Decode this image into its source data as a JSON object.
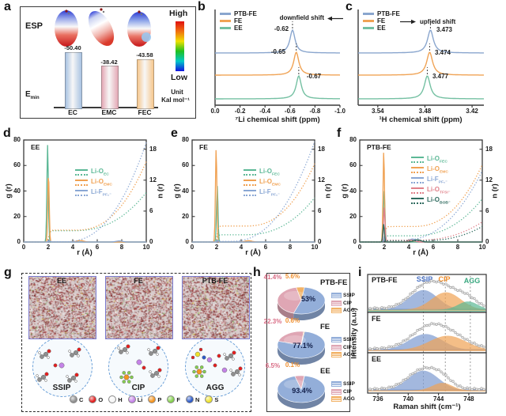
{
  "figure": {
    "panel_letters": {
      "a": "a",
      "b": "b",
      "c": "c",
      "d": "d",
      "e": "e",
      "f": "f",
      "g": "g",
      "h": "h",
      "i": "i"
    }
  },
  "colors": {
    "series_blue": "#8aa6ce",
    "series_orange": "#f0a355",
    "series_green": "#74c0a2",
    "tfsi_red": "#e0808a",
    "bob_teal": "#2f6b5f",
    "pie_blue": "#93aed9",
    "pie_pink": "#dfa6b4",
    "pie_orange": "#f2b266",
    "axis": "#3a3a3a"
  },
  "chart_data": [
    {
      "panel": "a",
      "type": "bar",
      "title": "ESP",
      "ylabel_main": "E",
      "ylabel_sub": "min",
      "categories": [
        "EC",
        "EMC",
        "FEC"
      ],
      "values": [
        -50.4,
        -38.42,
        -43.58
      ],
      "value_labels": [
        "-50.40",
        "-38.42",
        "-43.58"
      ],
      "bar_colors": [
        "#a9c3e2",
        "#e4aab6",
        "#f6c78e"
      ],
      "colorbar_high": "High",
      "colorbar_low": "Low",
      "unit_line1": "Unit",
      "unit_line2": "Kal mol⁻¹"
    },
    {
      "panel": "b",
      "type": "line",
      "legend": [
        "PTB-FE",
        "FE",
        "EE"
      ],
      "series_colors": [
        "#8aa6ce",
        "#f0a355",
        "#74c0a2"
      ],
      "annotation": "downfield shift",
      "arrow": "left",
      "peaks": [
        -0.62,
        -0.65,
        -0.67
      ],
      "peak_labels": [
        "-0.62",
        "-0.65",
        "-0.67"
      ],
      "xlabel": "⁷Li chemical shift (ppm)",
      "xtick_labels": [
        "0.0",
        "-0.2",
        "-0.4",
        "-0.6",
        "-0.8",
        "-1.0"
      ],
      "xtick_values": [
        0,
        -0.2,
        -0.4,
        -0.6,
        -0.8,
        -1.0
      ],
      "xlim": [
        0,
        -1
      ]
    },
    {
      "panel": "c",
      "type": "line",
      "legend": [
        "PTB-FE",
        "FE",
        "EE"
      ],
      "series_colors": [
        "#8aa6ce",
        "#f0a355",
        "#74c0a2"
      ],
      "annotation": "upfield shift",
      "arrow": "right",
      "peaks": [
        3.473,
        3.474,
        3.477
      ],
      "peak_labels": [
        "3.473",
        "3.474",
        "3.477"
      ],
      "xlabel": "¹H chemical shift (ppm)",
      "xtick_labels": [
        "3.54",
        "3.48",
        "3.42"
      ],
      "xtick_values": [
        3.54,
        3.48,
        3.42
      ],
      "xlim": [
        3.565,
        3.405
      ]
    },
    {
      "panel": "d",
      "type": "line",
      "title": "EE",
      "xlabel": "r (Å)",
      "ylabel_left": "g (r)",
      "ylabel_right": "n (r)",
      "xticks": [
        0,
        2,
        4,
        6,
        8,
        10
      ],
      "yticks_left": [
        0,
        20,
        40,
        60,
        80
      ],
      "yticks_right": [
        0,
        6,
        12,
        18
      ],
      "ylim_left": [
        0,
        80
      ],
      "ylim_right": [
        0,
        19.8
      ],
      "series": [
        {
          "label_main": "Li-O",
          "label_sub": "EC",
          "color": "#5cb896",
          "g_peak": [
            1.95,
            76
          ],
          "g_bump": null,
          "n_curve": [
            2.2,
            9.6,
            4.0
          ]
        },
        {
          "label_main": "Li-O",
          "label_sub": "EMC",
          "color": "#f0a152",
          "g_peak": [
            2.02,
            53
          ],
          "g_bump": [
            4.6,
            1.2
          ],
          "n_curve": [
            2.3,
            15.6,
            4.2
          ]
        },
        {
          "label_main": "Li-F",
          "label_sub": "PF₆⁻",
          "color": "#8aa7d4",
          "g_peak": [
            2.1,
            1.2
          ],
          "g_bump": [
            7.8,
            0.8
          ],
          "n_curve": [
            0.05,
            19.3,
            3.3
          ]
        }
      ]
    },
    {
      "panel": "e",
      "type": "line",
      "title": "FE",
      "xlabel": "r (Å)",
      "ylabel_left": "g (r)",
      "ylabel_right": "n (r)",
      "xticks": [
        0,
        2,
        4,
        6,
        8,
        10
      ],
      "yticks_left": [
        0,
        20,
        40,
        60,
        80
      ],
      "yticks_right": [
        0,
        6,
        12,
        18
      ],
      "ylim_left": [
        0,
        80
      ],
      "ylim_right": [
        0,
        19.8
      ],
      "series": [
        {
          "label_main": "Li-O",
          "label_sub": "FEC",
          "color": "#5cb896",
          "g_peak": [
            2.05,
            44
          ],
          "g_bump": null,
          "n_curve": [
            1.4,
            8.6,
            4.2
          ]
        },
        {
          "label_main": "Li-O",
          "label_sub": "EMC",
          "color": "#f0a152",
          "g_peak": [
            1.96,
            73
          ],
          "g_bump": [
            4.6,
            1.0
          ],
          "n_curve": [
            3.1,
            15.2,
            4.4
          ]
        },
        {
          "label_main": "Li-F",
          "label_sub": "PF₆⁻",
          "color": "#8aa7d4",
          "g_peak": [
            2.1,
            1.5
          ],
          "g_bump": null,
          "n_curve": [
            0.1,
            19.5,
            3.0
          ]
        }
      ]
    },
    {
      "panel": "f",
      "type": "line",
      "title": "PTB-FE",
      "xlabel": "r (Å)",
      "ylabel_left": "g (r)",
      "ylabel_right": "n (r)",
      "xticks": [
        0,
        2,
        4,
        6,
        8,
        10
      ],
      "yticks_left": [
        0,
        20,
        40,
        60,
        80
      ],
      "yticks_right": [
        0,
        6,
        12,
        18
      ],
      "ylim_left": [
        0,
        80
      ],
      "ylim_right": [
        0,
        19.8
      ],
      "series": [
        {
          "label_main": "Li-O",
          "label_sub": "FEC",
          "color": "#5cb896",
          "g_peak": [
            2.0,
            40
          ],
          "g_bump": null,
          "n_curve": [
            1.2,
            8.4,
            4.2
          ]
        },
        {
          "label_main": "Li-O",
          "label_sub": "EMC",
          "color": "#f0a152",
          "g_peak": [
            1.96,
            71
          ],
          "g_bump": [
            4.6,
            1.0
          ],
          "n_curve": [
            3.0,
            15.0,
            4.3
          ]
        },
        {
          "label_main": "Li-F",
          "label_sub": "PF₆⁻",
          "color": "#8aa7d4",
          "g_peak": [
            2.05,
            5
          ],
          "g_bump": [
            4.3,
            2.3
          ],
          "n_curve": [
            0.3,
            13.8,
            3.2
          ]
        },
        {
          "label_main": "Li-O",
          "label_sub": "TFSI⁻",
          "color": "#e0808a",
          "g_peak": [
            2.0,
            27
          ],
          "g_bump": [
            4.2,
            1.5
          ],
          "n_curve": [
            0.35,
            3.9,
            4.5
          ]
        },
        {
          "label_main": "Li-O",
          "label_sub": "BOB⁻",
          "color": "#2f6b5f",
          "g_peak": [
            1.95,
            14
          ],
          "g_bump": [
            4.7,
            1.8
          ],
          "n_curve": [
            0.25,
            3.0,
            5.0
          ]
        }
      ]
    },
    {
      "panel": "g",
      "type": "snapshot",
      "box_labels": [
        "EE",
        "FE",
        "PTB-FE"
      ],
      "cluster_labels": [
        "SSIP",
        "CIP",
        "AGG"
      ],
      "atom_legend": [
        {
          "symbol": "C",
          "color": "#8f8f8f"
        },
        {
          "symbol": "O",
          "color": "#e41e1e"
        },
        {
          "symbol": "H",
          "color": "#f5f5f5"
        },
        {
          "symbol": "Li",
          "color": "#c583e8"
        },
        {
          "symbol": "P",
          "color": "#f5941e"
        },
        {
          "symbol": "F",
          "color": "#86d14e"
        },
        {
          "symbol": "N",
          "color": "#2b59c8"
        },
        {
          "symbol": "S",
          "color": "#efe32a"
        }
      ]
    },
    {
      "panel": "h",
      "type": "pie",
      "legend": [
        "SSIP",
        "CIP",
        "AGG"
      ],
      "slice_colors": [
        "#93aed9",
        "#dfa6b4",
        "#f2b266"
      ],
      "pies": [
        {
          "title": "PTB-FE",
          "values": [
            53,
            41.4,
            5.6
          ],
          "labels": [
            "53%",
            "41.4%",
            "5.6%"
          ]
        },
        {
          "title": "FE",
          "values": [
            77.1,
            22.3,
            0.6
          ],
          "labels": [
            "77.1%",
            "22.3%",
            "0.6%"
          ]
        },
        {
          "title": "EE",
          "values": [
            93.4,
            6.5,
            0.1
          ],
          "labels": [
            "93.4%",
            "6.5%",
            "0.1%"
          ]
        }
      ]
    },
    {
      "panel": "i",
      "type": "area",
      "xlabel": "Raman shift (cm⁻¹)",
      "ylabel": "Intensity (a.u.)",
      "component_labels": [
        "SSIP",
        "CIP",
        "AGG"
      ],
      "component_label_colors": [
        "#4a72c4",
        "#f08c28",
        "#3aa880"
      ],
      "component_colors": [
        "#7d9bd0",
        "#f0a355",
        "#5bb893"
      ],
      "dashed_lines": [
        742,
        744.9,
        748.2
      ],
      "xticks": [
        736,
        740,
        744,
        748
      ],
      "subpanels": [
        {
          "label": "PTB-FE",
          "components": [
            [
              742,
              1.9,
              0.62,
              0
            ],
            [
              745,
              1.9,
              0.55,
              1
            ],
            [
              747.9,
              1.3,
              0.26,
              2
            ]
          ]
        },
        {
          "label": "FE",
          "components": [
            [
              742.3,
              2.2,
              0.47,
              0
            ],
            [
              745.2,
              2.4,
              0.42,
              1
            ]
          ]
        },
        {
          "label": "EE",
          "components": [
            [
              742,
              2.0,
              0.58,
              0
            ],
            [
              744.5,
              1.3,
              0.22,
              1
            ]
          ]
        }
      ]
    }
  ]
}
